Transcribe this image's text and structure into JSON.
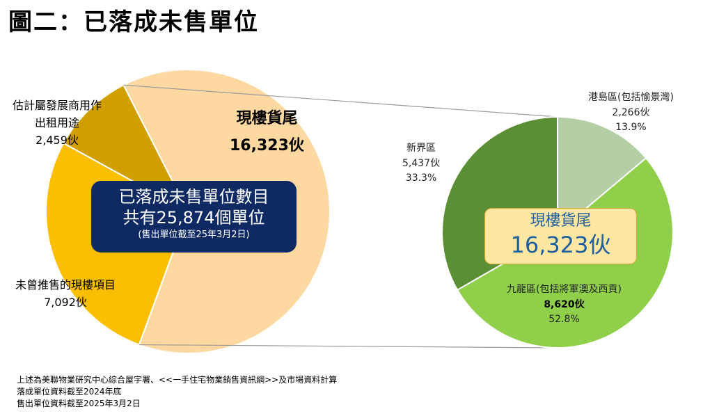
{
  "title": "圖二：已落成未售單位",
  "colors": {
    "current_stock": "#fdd9a1",
    "never_sold": "#fbbf00",
    "commercial": "#d19f00",
    "hk_island": "#b4cfa6",
    "kowloon": "#8fcf4a",
    "new_territories": "#5b8f35",
    "center_box": "#0f2a63",
    "right_box": "#fde7a2"
  },
  "chart_data": [
    {
      "type": "pie",
      "title": "",
      "slices": [
        {
          "label": "現樓貨尾",
          "value": 16323,
          "display": "16,323伙"
        },
        {
          "label": "未曾推售的現樓項目",
          "value": 7092,
          "display": "7,092伙"
        },
        {
          "label": "估計屬發展商用作出租用途",
          "value": 2459,
          "display": "2,459伙"
        }
      ],
      "total_box": {
        "line1": "已落成未售單位數目",
        "line2": "共有25,874個單位",
        "line3": "(售出單位截至25年3月2日)"
      }
    },
    {
      "type": "pie",
      "title": "",
      "slices": [
        {
          "label": "港島區(包括愉景灣)",
          "value": 2266,
          "display": "2,266伙",
          "percent": "13.9%"
        },
        {
          "label": "九龍區(包括將軍澳及西貢)",
          "value": 8620,
          "display": "8,620伙",
          "percent": "52.8%"
        },
        {
          "label": "新界區",
          "value": 5437,
          "display": "5,437伙",
          "percent": "33.3%"
        }
      ],
      "center_box": {
        "line1": "現樓貨尾",
        "line2": "16,323伙"
      }
    }
  ],
  "left_labels": {
    "current_name": "現樓貨尾",
    "current_value": "16,323伙",
    "never_name": "未曾推售的現樓項目",
    "never_value": "7,092伙",
    "comm_name1": "估計屬發展商用作",
    "comm_name2": "出租用途",
    "comm_value": "2,459伙"
  },
  "notes": [
    "上述為美聯物業研究中心綜合屋宇署、<<一手住宅物業銷售資訊網>>及市場資料計算",
    "落成單位資料截至2024年底",
    "售出單位資料截至2025年3月2日"
  ]
}
